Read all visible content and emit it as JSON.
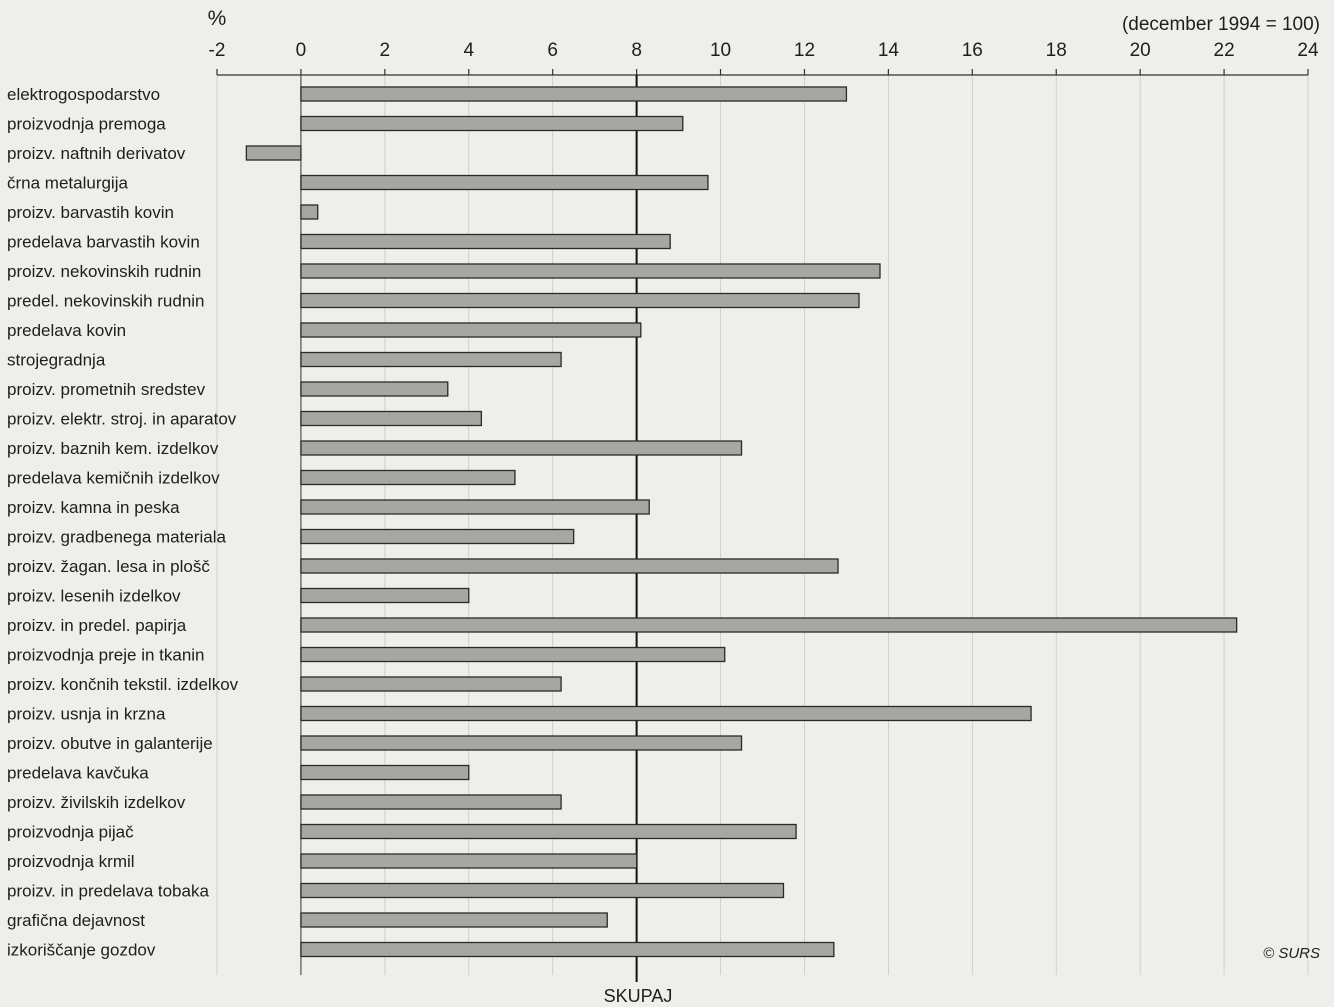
{
  "chart_data": {
    "type": "bar",
    "orientation": "horizontal",
    "unit_label": "%",
    "base_note": "(december 1994 = 100)",
    "reference_label": "SKUPAJ",
    "reference_value": 8,
    "xlim": [
      -2,
      24
    ],
    "xticks": [
      -2,
      0,
      2,
      4,
      6,
      8,
      10,
      12,
      14,
      16,
      18,
      20,
      22,
      24
    ],
    "grid": true,
    "credit": "© SURS",
    "categories": [
      "elektrogospodarstvo",
      "proizvodnja premoga",
      "proizv. naftnih derivatov",
      "črna metalurgija",
      "proizv. barvastih kovin",
      "predelava barvastih kovin",
      "proizv. nekovinskih rudnin",
      "predel. nekovinskih rudnin",
      "predelava kovin",
      "strojegradnja",
      "proizv. prometnih sredstev",
      "proizv. elektr. stroj. in aparatov",
      "proizv. baznih kem. izdelkov",
      "predelava kemičnih izdelkov",
      "proizv. kamna in peska",
      "proizv. gradbenega materiala",
      "proizv. žagan. lesa in plošč",
      "proizv. lesenih izdelkov",
      "proizv. in predel. papirja",
      "proizvodnja preje in tkanin",
      "proizv. končnih tekstil. izdelkov",
      "proizv. usnja in krzna",
      "proizv. obutve in galanterije",
      "predelava kavčuka",
      "proizv. živilskih izdelkov",
      "proizvodnja pijač",
      "proizvodnja krmil",
      "proizv. in predelava tobaka",
      "grafična dejavnost",
      "izkoriščanje gozdov"
    ],
    "values": [
      13.0,
      9.1,
      -1.3,
      9.7,
      0.4,
      8.8,
      13.8,
      13.3,
      8.1,
      6.2,
      3.5,
      4.3,
      10.5,
      5.1,
      8.3,
      6.5,
      12.8,
      4.0,
      22.3,
      10.1,
      6.2,
      17.4,
      10.5,
      4.0,
      6.2,
      11.8,
      8.0,
      11.5,
      7.3,
      12.7
    ]
  }
}
